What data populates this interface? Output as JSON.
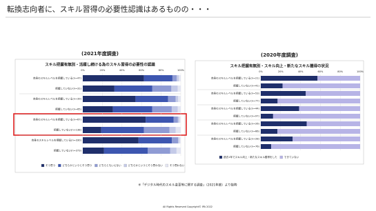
{
  "header": {
    "title": "転換志向者に、スキル習得の必要性認識はあるものの・・・"
  },
  "chart_data": [
    {
      "type": "hbar-stacked",
      "subtitle": "(2021年度調査)",
      "title": "スキル把握有無別・活躍し続ける為のスキル習得の必要性の認識",
      "categories": [
        "自身のスキルレベルを把握している(n=47)",
        "把握していない(n=31)",
        "自身のスキルレベルを把握している(n=39)",
        "把握していない(n=65)",
        "自身のスキルレベルを把握している(n=67)",
        "把握していない(n=138)",
        "自身のスキルレベルを把握している(n=330)",
        "把握していない(n=373)"
      ],
      "series": [
        {
          "name": "そう思う",
          "color": "#1f2f6b",
          "values": [
            62.5,
            32.3,
            53.8,
            30.8,
            64.2,
            18.8,
            56.9,
            21.7
          ]
        },
        {
          "name": "どちらかというとそう思う",
          "color": "#3d56b0",
          "values": [
            29.0,
            38.7,
            33.3,
            40.0,
            28.4,
            43.5,
            34.0,
            44.5
          ]
        },
        {
          "name": "どちらともいえない",
          "color": "#8f9bd4",
          "values": [
            4.3,
            19.4,
            7.7,
            20.0,
            4.5,
            26.1,
            6.4,
            23.1
          ]
        },
        {
          "name": "どちらかというとそう思わない",
          "color": "#c4cae8",
          "values": [
            2.1,
            6.5,
            2.6,
            6.2,
            1.5,
            6.5,
            1.5,
            6.4
          ]
        },
        {
          "name": "そう思わない",
          "color": "#e4e6f3",
          "values": [
            2.1,
            3.2,
            2.6,
            3.0,
            1.4,
            5.1,
            1.2,
            4.3
          ]
        }
      ],
      "xlim": [
        0,
        100
      ],
      "xticks": [
        {
          "value": 0,
          "label": "0%"
        },
        {
          "value": 20,
          "label": "20%"
        },
        {
          "value": 40,
          "label": "40%"
        },
        {
          "value": 60,
          "label": "60%"
        },
        {
          "value": 80,
          "label": "80%"
        },
        {
          "value": 100,
          "label": "100%"
        }
      ],
      "grid": true
    },
    {
      "type": "hbar-stacked",
      "subtitle": "(2020年度調査)",
      "title": "スキル把握有無別・スキル向上・新たなスキル獲得の状況",
      "categories": [
        "自身のスキルレベルを把握している(n=21)",
        "把握していない(n=41)",
        "自身のスキルレベルを把握している(n=53)",
        "把握していない(n=77)",
        "自身のスキルレベルを把握している(n=44)",
        "把握していない(n=97)",
        "自身のスキルレベルを把握している(n=26)",
        "把握していない(n=66)",
        "自身のスキルレベルを把握している(n=28)",
        "把握していない(n=76)"
      ],
      "series": [
        {
          "name": "過去1年でスキル向上・新たなスキル獲得をした",
          "color": "#1f2f6b",
          "values": [
            57.1,
            22.0,
            45.3,
            16.9,
            38.6,
            12.4,
            46.2,
            16.7,
            32.1,
            10.5
          ]
        },
        {
          "name": "できていない",
          "color": "#b7b4e6",
          "values": [
            42.9,
            78.0,
            54.7,
            83.1,
            61.4,
            87.6,
            53.8,
            83.3,
            67.9,
            89.5
          ]
        }
      ],
      "xlim": [
        0,
        100
      ],
      "xticks": [
        {
          "value": 0,
          "label": "0%"
        },
        {
          "value": 20,
          "label": "20%"
        },
        {
          "value": 40,
          "label": "40%"
        },
        {
          "value": 60,
          "label": "60%"
        },
        {
          "value": 80,
          "label": "80%"
        },
        {
          "value": 100,
          "label": "100%"
        }
      ],
      "grid": true
    }
  ],
  "footnote": "※「デジタル時代のスキル変革等に関する調査」（2021年度）より抜粋",
  "footer": "All Rights Reserved Copyright© IPA 2022"
}
